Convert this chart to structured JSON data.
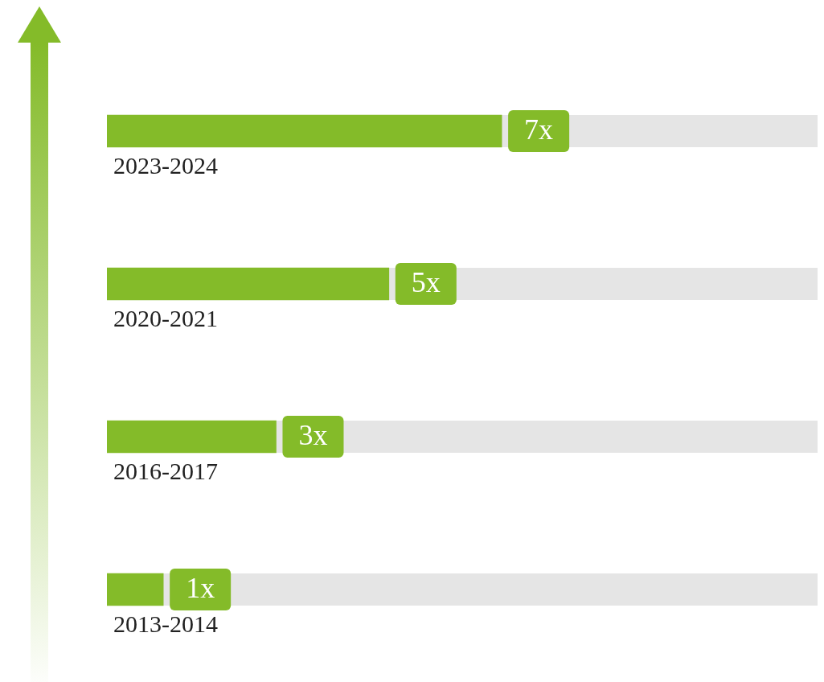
{
  "chart_data": {
    "type": "bar",
    "orientation": "horizontal",
    "categories": [
      "2023-2024",
      "2020-2021",
      "2016-2017",
      "2013-2014"
    ],
    "values": [
      7,
      5,
      3,
      1
    ],
    "value_labels": [
      "7x",
      "5x",
      "3x",
      "1x"
    ],
    "color": "#84bb29"
  }
}
